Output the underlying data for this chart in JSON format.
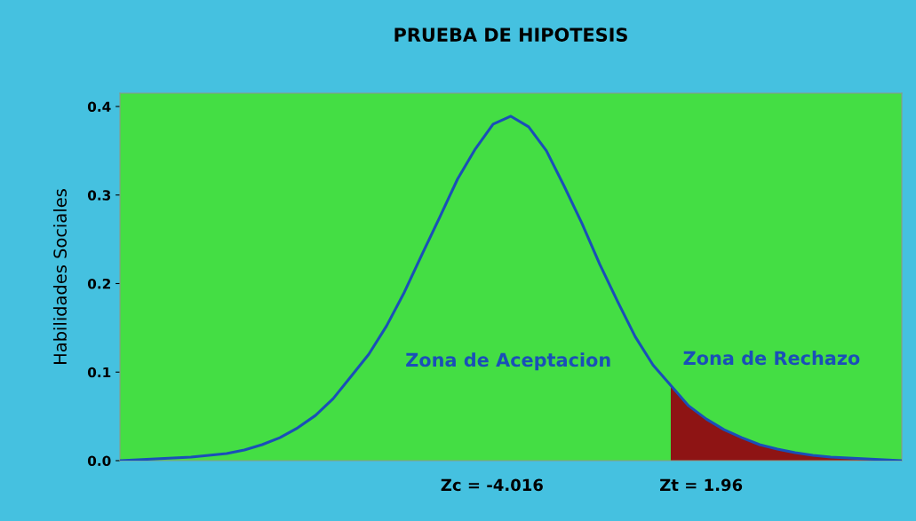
{
  "chart_data": {
    "type": "line",
    "title": "PRUEBA DE HIPOTESIS",
    "ylabel": "Habilidades Sociales",
    "categories": [
      null,
      null,
      null,
      null,
      null,
      null,
      null,
      null,
      null,
      null,
      null,
      null,
      null,
      null,
      null,
      null,
      null,
      null,
      null,
      null,
      null,
      null,
      null,
      null,
      null,
      null,
      null,
      null,
      null,
      null,
      null,
      null,
      null,
      null,
      null,
      null,
      null,
      null,
      null,
      null,
      null,
      null,
      null,
      null,
      null
    ],
    "series": [
      {
        "color": "#1a4fb8",
        "values": [
          0.0,
          0.001,
          0.002,
          0.003,
          0.004,
          0.006,
          0.008,
          0.012,
          0.018,
          0.026,
          0.037,
          0.051,
          0.07,
          0.095,
          0.12,
          0.152,
          0.19,
          0.233,
          0.275,
          0.318,
          0.352,
          0.38,
          0.389,
          0.377,
          0.35,
          0.31,
          0.268,
          0.222,
          0.18,
          0.14,
          0.108,
          0.085,
          0.062,
          0.047,
          0.035,
          0.026,
          0.018,
          0.013,
          0.009,
          0.006,
          0.004,
          0.003,
          0.002,
          0.001,
          0.0
        ]
      },
      {
        "type": "area",
        "color": "#8e1414",
        "values": [
          null,
          null,
          null,
          null,
          null,
          null,
          null,
          null,
          null,
          null,
          null,
          null,
          null,
          null,
          null,
          null,
          null,
          null,
          null,
          null,
          null,
          null,
          null,
          null,
          null,
          null,
          null,
          null,
          null,
          null,
          null,
          0.085,
          0.062,
          0.047,
          0.035,
          0.026,
          0.018,
          0.013,
          0.009,
          0.006,
          0.004,
          0.003,
          0.002,
          0.001,
          0.0
        ]
      }
    ],
    "ylim": [
      0,
      0.415
    ],
    "yticks": [
      {
        "value": 0,
        "label": "0.0"
      },
      0.1,
      0.2,
      0.3,
      0.4
    ],
    "tick_labels": "y",
    "grid": false,
    "legend": false,
    "annotations": [
      "Zona de Aceptacion",
      "Zona de Rechazo",
      "Zc = -4.016",
      "Zt = 1.96"
    ]
  }
}
